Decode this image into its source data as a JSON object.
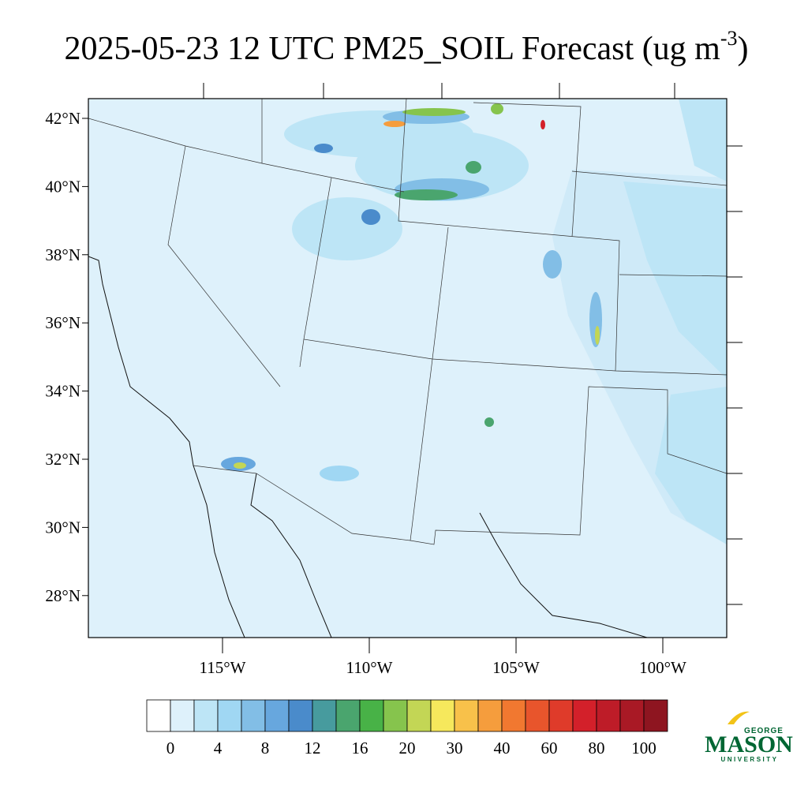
{
  "title": {
    "main": "2025-05-23 12 UTC PM25_SOIL Forecast (ug m",
    "superscript": "-3",
    "end": ")"
  },
  "map": {
    "lat_labels": [
      "42°N",
      "40°N",
      "38°N",
      "36°N",
      "34°N",
      "32°N",
      "30°N",
      "28°N"
    ],
    "lon_labels": [
      "115°W",
      "110°W",
      "105°W",
      "100°W"
    ]
  },
  "colorbar": {
    "colors": [
      "#ffffff",
      "#def1fb",
      "#bde5f6",
      "#a0d7f3",
      "#82bee6",
      "#67a7de",
      "#4a8bcb",
      "#479b9e",
      "#4aa56e",
      "#48b247",
      "#86c44d",
      "#c3d655",
      "#f6e85c",
      "#f8c14a",
      "#f59d3d",
      "#f17830",
      "#e8552c",
      "#df3b2a",
      "#d3202a",
      "#be1c28",
      "#a91925",
      "#8e1520"
    ],
    "labels": [
      0,
      4,
      8,
      12,
      16,
      20,
      30,
      40,
      60,
      80,
      100
    ]
  },
  "logo": {
    "top": "GEORGE",
    "name": "MASON",
    "bottom": "UNIVERSITY"
  }
}
